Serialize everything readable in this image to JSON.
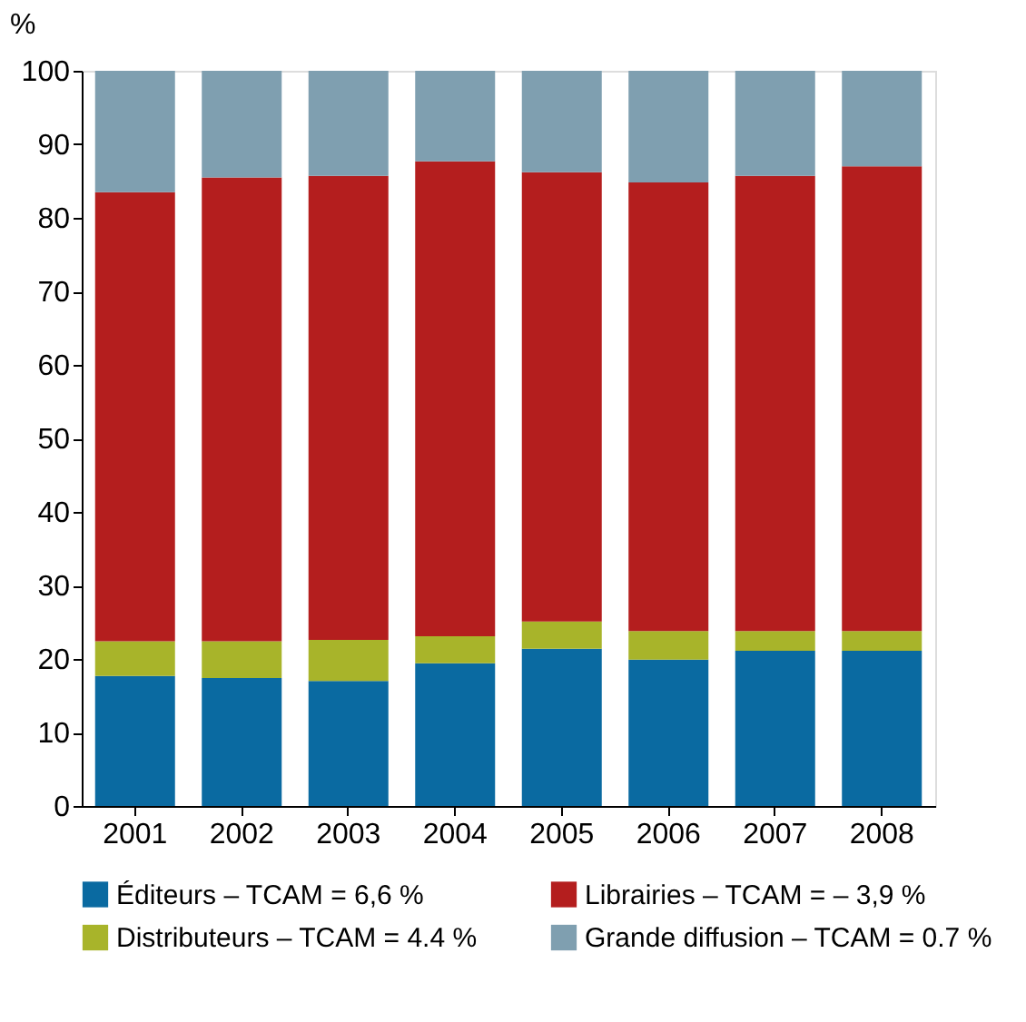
{
  "chart_data": {
    "type": "bar",
    "stacked": true,
    "ylabel": "%",
    "categories": [
      "2001",
      "2002",
      "2003",
      "2004",
      "2005",
      "2006",
      "2007",
      "2008"
    ],
    "series": [
      {
        "name": "Éditeurs – TCAM = 6,6 %",
        "color": "#0a6aa1",
        "values": [
          17.7,
          17.4,
          17.0,
          19.4,
          21.4,
          19.9,
          21.1,
          21.1
        ]
      },
      {
        "name": "Distributeurs – TCAM = 4.4 %",
        "color": "#a8b42a",
        "values": [
          4.7,
          5.0,
          5.6,
          3.7,
          3.7,
          3.9,
          2.7,
          2.7
        ]
      },
      {
        "name": "Librairies – TCAM = – 3,9 %",
        "color": "#b41e1e",
        "values": [
          61.1,
          63.1,
          63.1,
          64.6,
          61.1,
          61.0,
          61.9,
          63.2
        ]
      },
      {
        "name": "Grande diffusion – TCAM = 0.7 %",
        "color": "#7f9fb0",
        "values": [
          16.5,
          14.5,
          14.3,
          12.3,
          13.8,
          15.2,
          14.3,
          13.0
        ]
      }
    ],
    "ylim": [
      0,
      100
    ],
    "yticks": [
      0,
      10,
      20,
      30,
      40,
      50,
      60,
      70,
      80,
      90,
      100
    ],
    "grid": false,
    "legend": "bottom"
  }
}
